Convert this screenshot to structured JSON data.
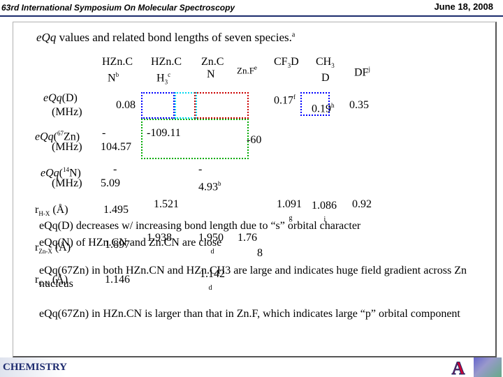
{
  "header": {
    "conference": "63rd International Symposium On Molecular Spectroscopy",
    "date": "June 18, 2008"
  },
  "title": {
    "eqq": "eQq",
    "text": " values and related bond lengths of seven species.",
    "note": "a"
  },
  "columns": [
    "HZn.C N",
    "HZn.C H3",
    "Zn.C N",
    "Zn.F",
    "CF3D",
    "CH3 D",
    "DF"
  ],
  "rows": {
    "eqqD": {
      "label1": "eQq(D)",
      "label2": "(MHz)",
      "v1": "0.08",
      "v2": "0.17",
      "v3": "0.19",
      "v4": "0.35"
    },
    "eqqZn": {
      "label1": "eQq(67Zn)",
      "label2": "(MHz)",
      "v1a": "-",
      "v1b": "104.57",
      "v2": "-109.11",
      "v3": "60"
    },
    "eqqN": {
      "label1": "eQq(14N)",
      "label2": "(MHz)",
      "v1a": "-",
      "v1b": "5.09",
      "v2a": "-",
      "v2b": "4.93"
    },
    "rHX": {
      "label": "rH-X (Å)",
      "v1": "1.495",
      "v2": "1.521",
      "v3": "1.091",
      "v4": "1.086",
      "v5": "0.92"
    },
    "rZnX": {
      "label": "rZn-X (Å)",
      "v1": "1.897",
      "v2": "1.938",
      "v3": "1.950",
      "v4": "1.76",
      "v5": "8"
    },
    "rCN": {
      "label": "rC-N (Å)",
      "v1": "1.146",
      "v2": "1.142"
    }
  },
  "bullets": [
    "eQq(D) decreases w/ increasing bond length due to “s” orbital character",
    "eQq(N) of HZn.CN and Zn.CN are close",
    "eQq(67Zn) in both HZn.CN and HZn.CH3 are large and indicates huge field gradient across Zn nucleus",
    "eQq(67Zn) in HZn.CN is larger than that in Zn.F, which indicates large “p” orbital component"
  ],
  "footer": {
    "logo": "CHEMISTRY",
    "ua_letter": "A"
  },
  "colors": {
    "header_line": "#1a2a6c",
    "blue_box": "#0000ff",
    "red_box": "#cc0000",
    "green_box": "#00aa00",
    "cyan_box": "#00d8f0"
  }
}
